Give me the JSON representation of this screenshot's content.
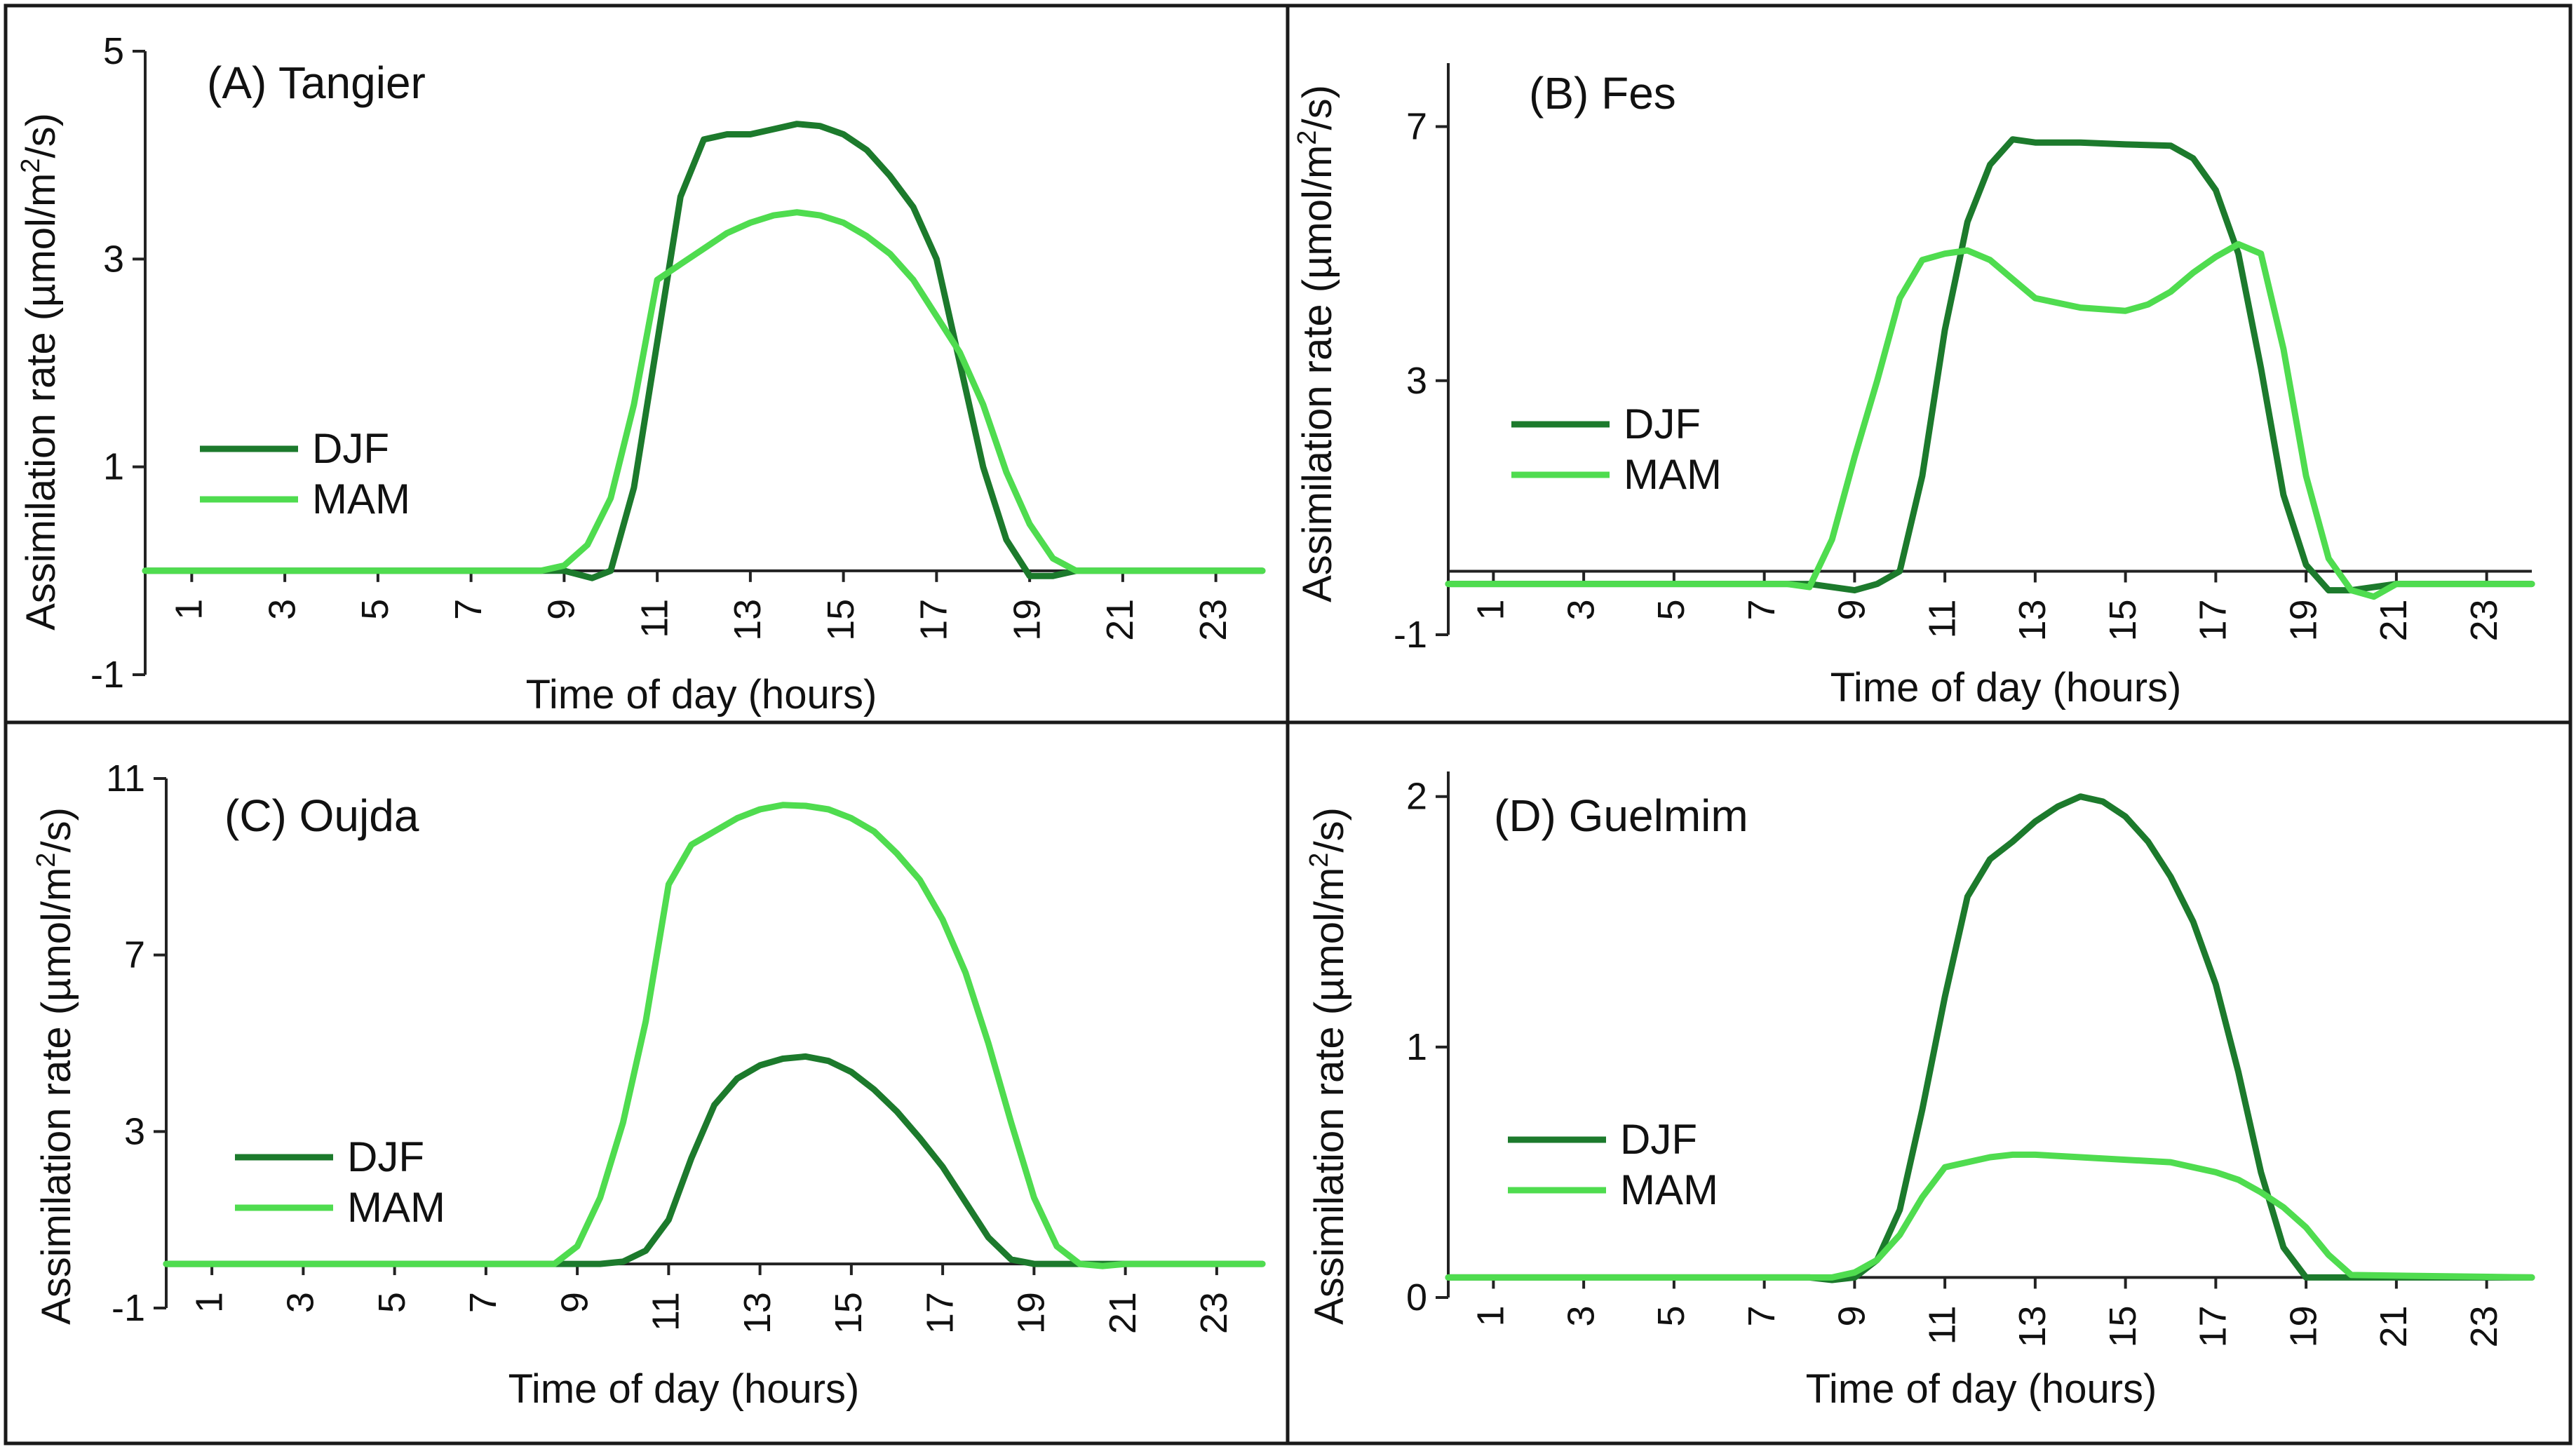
{
  "colors": {
    "DJF": "#1c7a2c",
    "MAM": "#4fdc4f",
    "frame": "#1a1a1a",
    "axis": "#222222"
  },
  "x_axis_label": "Time of day (hours)",
  "chart_data": [
    {
      "type": "line",
      "title": "(A) Tangier",
      "xlabel": "Time of day  (hours)",
      "ylabel": "Assimilation rate  (µmol/m²/s)",
      "ylabel_parts": [
        "Assimilation rate  (µmol/m",
        "2",
        "/s)"
      ],
      "xticks": [
        "1",
        "3",
        "5",
        "7",
        "9",
        "11",
        "13",
        "15",
        "17",
        "19",
        "21",
        "23"
      ],
      "yticks": [
        "-1",
        "1",
        "3",
        "5"
      ],
      "xlim": [
        0,
        24
      ],
      "ylim": [
        -1,
        5
      ],
      "series": [
        {
          "name": "DJF",
          "x": [
            0,
            8,
            9,
            9.6,
            10,
            10.5,
            11,
            11.5,
            12,
            12.5,
            13,
            13.5,
            14,
            14.5,
            15,
            15.5,
            16,
            16.5,
            17,
            17.5,
            18,
            18.5,
            19,
            19.5,
            20,
            21,
            24
          ],
          "y": [
            0,
            0,
            0,
            -0.07,
            0,
            0.8,
            2.2,
            3.6,
            4.15,
            4.2,
            4.2,
            4.25,
            4.3,
            4.28,
            4.2,
            4.05,
            3.8,
            3.5,
            3.0,
            2.0,
            1.0,
            0.3,
            -0.05,
            -0.05,
            0,
            0,
            0
          ]
        },
        {
          "name": "MAM",
          "x": [
            0,
            8.5,
            9,
            9.5,
            10,
            10.5,
            11,
            11.5,
            12,
            12.5,
            13,
            13.5,
            14,
            14.5,
            15,
            15.5,
            16,
            16.5,
            17,
            17.5,
            18,
            18.5,
            19,
            19.5,
            20,
            21,
            24
          ],
          "y": [
            0,
            0,
            0.05,
            0.25,
            0.7,
            1.6,
            2.8,
            2.95,
            3.1,
            3.25,
            3.35,
            3.42,
            3.45,
            3.42,
            3.35,
            3.22,
            3.05,
            2.8,
            2.45,
            2.1,
            1.6,
            0.95,
            0.45,
            0.12,
            0,
            0,
            0
          ]
        }
      ],
      "legend": [
        "DJF",
        "MAM"
      ]
    },
    {
      "type": "line",
      "title": "(B) Fes",
      "xlabel": "Time of day (hours)",
      "ylabel": "Assimilation rate  (µmol/m²/s)",
      "ylabel_parts": [
        "Assimilation rate  (µmol/m",
        "2",
        "/s)"
      ],
      "xticks": [
        "1",
        "3",
        "5",
        "7",
        "9",
        "11",
        "13",
        "15",
        "17",
        "19",
        "21",
        "23"
      ],
      "yticks": [
        "-1",
        "3",
        "7"
      ],
      "xlim": [
        0,
        24
      ],
      "ylim": [
        -1,
        8
      ],
      "series": [
        {
          "name": "DJF",
          "x": [
            0,
            8,
            8.5,
            9,
            9.5,
            10,
            10.5,
            11,
            11.5,
            12,
            12.5,
            13,
            14,
            15,
            16,
            16.5,
            17,
            17.5,
            18,
            18.5,
            19,
            19.5,
            20,
            21,
            24
          ],
          "y": [
            -0.2,
            -0.2,
            -0.25,
            -0.3,
            -0.2,
            0,
            1.5,
            3.8,
            5.5,
            6.4,
            6.8,
            6.75,
            6.75,
            6.72,
            6.7,
            6.5,
            6.0,
            5.0,
            3.2,
            1.2,
            0.1,
            -0.3,
            -0.3,
            -0.2,
            -0.2
          ]
        },
        {
          "name": "MAM",
          "x": [
            0,
            7.5,
            8,
            8.5,
            9,
            9.5,
            10,
            10.5,
            11,
            11.5,
            12,
            12.5,
            13,
            14,
            15,
            15.5,
            16,
            16.5,
            17,
            17.5,
            18,
            18.5,
            19,
            19.5,
            20,
            20.5,
            21,
            24
          ],
          "y": [
            -0.2,
            -0.2,
            -0.25,
            0.5,
            1.8,
            3.0,
            4.3,
            4.9,
            5.0,
            5.05,
            4.9,
            4.6,
            4.3,
            4.15,
            4.1,
            4.2,
            4.4,
            4.7,
            4.95,
            5.15,
            5.0,
            3.5,
            1.5,
            0.2,
            -0.3,
            -0.4,
            -0.2,
            -0.2
          ]
        }
      ],
      "legend": [
        "DJF",
        "MAM"
      ]
    },
    {
      "type": "line",
      "title": "(C) Oujda",
      "xlabel": "Time of day (hours)",
      "ylabel": "Assimilation rate (µmol/m²/s)",
      "ylabel_parts": [
        "Assimilation rate (µmol/m",
        "2",
        "/s)"
      ],
      "xticks": [
        "1",
        "3",
        "5",
        "7",
        "9",
        "11",
        "13",
        "15",
        "17",
        "19",
        "21",
        "23"
      ],
      "yticks": [
        "-1",
        "3",
        "7",
        "11"
      ],
      "xlim": [
        0,
        24
      ],
      "ylim": [
        -1,
        11
      ],
      "series": [
        {
          "name": "DJF",
          "x": [
            0,
            9.5,
            10,
            10.5,
            11,
            11.5,
            12,
            12.5,
            13,
            13.5,
            14,
            14.5,
            15,
            15.5,
            16,
            16.5,
            17,
            17.5,
            18,
            18.5,
            19,
            24
          ],
          "y": [
            0,
            0,
            0.05,
            0.3,
            1.0,
            2.4,
            3.6,
            4.2,
            4.5,
            4.65,
            4.7,
            4.6,
            4.35,
            3.95,
            3.45,
            2.85,
            2.2,
            1.4,
            0.6,
            0.1,
            0,
            0
          ]
        },
        {
          "name": "MAM",
          "x": [
            0,
            8.5,
            9,
            9.5,
            10,
            10.5,
            11,
            11.5,
            12,
            12.5,
            13,
            13.5,
            14,
            14.5,
            15,
            15.5,
            16,
            16.5,
            17,
            17.5,
            18,
            18.5,
            19,
            19.5,
            20,
            20.5,
            21,
            24
          ],
          "y": [
            0,
            0,
            0.4,
            1.5,
            3.2,
            5.5,
            8.6,
            9.5,
            9.8,
            10.1,
            10.3,
            10.4,
            10.38,
            10.3,
            10.1,
            9.8,
            9.3,
            8.7,
            7.8,
            6.6,
            5.0,
            3.2,
            1.5,
            0.4,
            0,
            -0.05,
            0,
            0
          ]
        }
      ],
      "legend": [
        "DJF",
        "MAM"
      ]
    },
    {
      "type": "line",
      "title": "(D) Guelmim",
      "xlabel": "Time of day (hours)",
      "ylabel": "Assimilation rate (µmol/m²/s)",
      "ylabel_parts": [
        "Assimilation rate (µmol/m",
        "2",
        "/s)"
      ],
      "xticks": [
        "1",
        "3",
        "5",
        "7",
        "9",
        "11",
        "13",
        "15",
        "17",
        "19",
        "21",
        "23"
      ],
      "yticks": [
        "0",
        "1",
        "2"
      ],
      "xlim": [
        0,
        24
      ],
      "ylim": [
        0,
        2.1
      ],
      "series": [
        {
          "name": "DJF",
          "x": [
            0,
            8,
            8.5,
            9,
            9.5,
            10,
            10.5,
            11,
            11.5,
            12,
            12.5,
            13,
            13.5,
            14,
            14.5,
            15,
            15.5,
            16,
            16.5,
            17,
            17.5,
            18,
            18.5,
            19,
            19.5,
            24
          ],
          "y": [
            0.08,
            0.08,
            0.07,
            0.08,
            0.15,
            0.35,
            0.75,
            1.2,
            1.6,
            1.75,
            1.82,
            1.9,
            1.96,
            2.0,
            1.98,
            1.92,
            1.82,
            1.68,
            1.5,
            1.25,
            0.9,
            0.5,
            0.2,
            0.08,
            0.08,
            0.08
          ]
        },
        {
          "name": "MAM",
          "x": [
            0,
            8,
            8.5,
            9,
            9.5,
            10,
            10.5,
            11,
            11.5,
            12,
            12.5,
            13,
            14,
            15,
            16,
            16.5,
            17,
            17.5,
            18,
            18.5,
            19,
            19.5,
            20,
            24
          ],
          "y": [
            0.08,
            0.08,
            0.08,
            0.1,
            0.15,
            0.25,
            0.4,
            0.52,
            0.54,
            0.56,
            0.57,
            0.57,
            0.56,
            0.55,
            0.54,
            0.52,
            0.5,
            0.47,
            0.42,
            0.36,
            0.28,
            0.17,
            0.09,
            0.08
          ]
        }
      ],
      "legend": [
        "DJF",
        "MAM"
      ]
    }
  ]
}
